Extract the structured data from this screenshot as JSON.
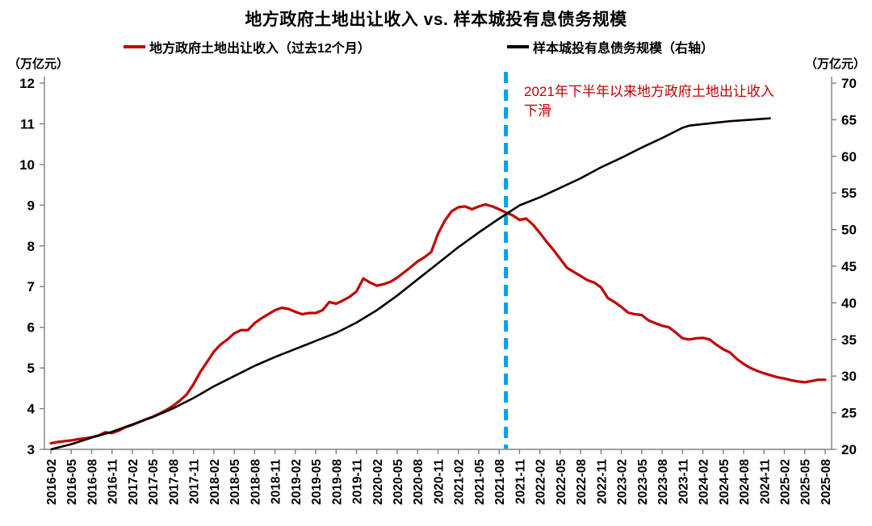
{
  "page": {
    "background": "#FFFFFF"
  },
  "chart_data": {
    "type": "line",
    "title": "地方政府土地出让收入 vs. 样本城投有息债务规模",
    "legend_position": "top",
    "grid": false,
    "x_range": [
      "2016-02",
      "2025-08"
    ],
    "left_axis": {
      "label": "（万亿元）",
      "min": 3,
      "max": 12,
      "ticks": [
        3,
        4,
        5,
        6,
        7,
        8,
        9,
        10,
        11,
        12
      ]
    },
    "right_axis": {
      "label": "（万亿元）",
      "min": 20,
      "max": 70,
      "ticks": [
        20,
        25,
        30,
        35,
        40,
        45,
        50,
        55,
        60,
        65,
        70
      ]
    },
    "x_tick_labels": [
      "2016-02",
      "2016-05",
      "2016-08",
      "2016-11",
      "2017-02",
      "2017-05",
      "2017-08",
      "2017-11",
      "2018-02",
      "2018-05",
      "2018-08",
      "2018-11",
      "2019-02",
      "2019-05",
      "2019-08",
      "2019-11",
      "2020-02",
      "2020-05",
      "2020-08",
      "2020-11",
      "2021-02",
      "2021-05",
      "2021-08",
      "2021-11",
      "2022-02",
      "2022-05",
      "2022-08",
      "2022-11",
      "2023-02",
      "2023-05",
      "2023-08",
      "2023-11",
      "2024-02",
      "2024-05",
      "2024-08",
      "2024-11",
      "2025-02",
      "2025-05",
      "2025-08"
    ],
    "vline": {
      "x": "2021-09",
      "color": "#00A0E9",
      "style": "dashed"
    },
    "annotation": {
      "text": "2021年下半年以来地方政府土地出让收入下滑",
      "lines": [
        "2021年下半年以来地方政府土地出让收入",
        "下滑"
      ],
      "color": "#C00000"
    },
    "series": [
      {
        "name": "地方政府土地出让收入（过去12个月）",
        "axis": "left",
        "color": "#C00000",
        "points": [
          [
            "2016-02",
            3.15
          ],
          [
            "2016-03",
            3.18
          ],
          [
            "2016-04",
            3.2
          ],
          [
            "2016-05",
            3.22
          ],
          [
            "2016-06",
            3.25
          ],
          [
            "2016-07",
            3.27
          ],
          [
            "2016-08",
            3.3
          ],
          [
            "2016-09",
            3.34
          ],
          [
            "2016-10",
            3.42
          ],
          [
            "2016-11",
            3.4
          ],
          [
            "2016-12",
            3.46
          ],
          [
            "2017-01",
            3.55
          ],
          [
            "2017-02",
            3.6
          ],
          [
            "2017-03",
            3.67
          ],
          [
            "2017-04",
            3.74
          ],
          [
            "2017-05",
            3.8
          ],
          [
            "2017-06",
            3.88
          ],
          [
            "2017-07",
            3.97
          ],
          [
            "2017-08",
            4.07
          ],
          [
            "2017-09",
            4.2
          ],
          [
            "2017-10",
            4.35
          ],
          [
            "2017-11",
            4.6
          ],
          [
            "2017-12",
            4.9
          ],
          [
            "2018-01",
            5.15
          ],
          [
            "2018-02",
            5.4
          ],
          [
            "2018-03",
            5.58
          ],
          [
            "2018-04",
            5.7
          ],
          [
            "2018-05",
            5.85
          ],
          [
            "2018-06",
            5.93
          ],
          [
            "2018-07",
            5.93
          ],
          [
            "2018-08",
            6.1
          ],
          [
            "2018-09",
            6.22
          ],
          [
            "2018-10",
            6.32
          ],
          [
            "2018-11",
            6.42
          ],
          [
            "2018-12",
            6.48
          ],
          [
            "2019-01",
            6.45
          ],
          [
            "2019-02",
            6.38
          ],
          [
            "2019-03",
            6.32
          ],
          [
            "2019-04",
            6.35
          ],
          [
            "2019-05",
            6.35
          ],
          [
            "2019-06",
            6.42
          ],
          [
            "2019-07",
            6.62
          ],
          [
            "2019-08",
            6.58
          ],
          [
            "2019-09",
            6.66
          ],
          [
            "2019-10",
            6.75
          ],
          [
            "2019-11",
            6.88
          ],
          [
            "2019-12",
            7.2
          ],
          [
            "2020-01",
            7.1
          ],
          [
            "2020-02",
            7.02
          ],
          [
            "2020-03",
            7.06
          ],
          [
            "2020-04",
            7.12
          ],
          [
            "2020-05",
            7.22
          ],
          [
            "2020-06",
            7.35
          ],
          [
            "2020-07",
            7.48
          ],
          [
            "2020-08",
            7.62
          ],
          [
            "2020-09",
            7.72
          ],
          [
            "2020-10",
            7.85
          ],
          [
            "2020-11",
            8.3
          ],
          [
            "2020-12",
            8.62
          ],
          [
            "2021-01",
            8.85
          ],
          [
            "2021-02",
            8.95
          ],
          [
            "2021-03",
            8.97
          ],
          [
            "2021-04",
            8.9
          ],
          [
            "2021-05",
            8.97
          ],
          [
            "2021-06",
            9.02
          ],
          [
            "2021-07",
            8.97
          ],
          [
            "2021-08",
            8.9
          ],
          [
            "2021-09",
            8.82
          ],
          [
            "2021-10",
            8.75
          ],
          [
            "2021-11",
            8.64
          ],
          [
            "2021-12",
            8.67
          ],
          [
            "2022-01",
            8.52
          ],
          [
            "2022-02",
            8.32
          ],
          [
            "2022-03",
            8.1
          ],
          [
            "2022-04",
            7.9
          ],
          [
            "2022-05",
            7.68
          ],
          [
            "2022-06",
            7.46
          ],
          [
            "2022-07",
            7.36
          ],
          [
            "2022-08",
            7.26
          ],
          [
            "2022-09",
            7.16
          ],
          [
            "2022-10",
            7.1
          ],
          [
            "2022-11",
            6.98
          ],
          [
            "2022-12",
            6.72
          ],
          [
            "2023-01",
            6.62
          ],
          [
            "2023-02",
            6.5
          ],
          [
            "2023-03",
            6.36
          ],
          [
            "2023-04",
            6.32
          ],
          [
            "2023-05",
            6.3
          ],
          [
            "2023-06",
            6.17
          ],
          [
            "2023-07",
            6.1
          ],
          [
            "2023-08",
            6.04
          ],
          [
            "2023-09",
            6.0
          ],
          [
            "2023-10",
            5.87
          ],
          [
            "2023-11",
            5.73
          ],
          [
            "2023-12",
            5.7
          ],
          [
            "2024-01",
            5.73
          ],
          [
            "2024-02",
            5.74
          ],
          [
            "2024-03",
            5.7
          ],
          [
            "2024-04",
            5.57
          ],
          [
            "2024-05",
            5.46
          ],
          [
            "2024-06",
            5.38
          ],
          [
            "2024-07",
            5.22
          ],
          [
            "2024-08",
            5.1
          ],
          [
            "2024-09",
            5.0
          ],
          [
            "2024-10",
            4.93
          ],
          [
            "2024-11",
            4.87
          ],
          [
            "2024-12",
            4.82
          ],
          [
            "2025-01",
            4.77
          ],
          [
            "2025-02",
            4.74
          ],
          [
            "2025-03",
            4.7
          ],
          [
            "2025-04",
            4.67
          ],
          [
            "2025-05",
            4.65
          ],
          [
            "2025-06",
            4.68
          ],
          [
            "2025-07",
            4.71
          ],
          [
            "2025-08",
            4.71
          ]
        ]
      },
      {
        "name": "样本城投有息债务规模（右轴）",
        "axis": "right",
        "color": "#000000",
        "points": [
          [
            "2016-02",
            20.0
          ],
          [
            "2016-05",
            20.7
          ],
          [
            "2016-08",
            21.6
          ],
          [
            "2016-11",
            22.4
          ],
          [
            "2017-02",
            23.4
          ],
          [
            "2017-05",
            24.4
          ],
          [
            "2017-08",
            25.6
          ],
          [
            "2017-11",
            27.0
          ],
          [
            "2018-02",
            28.6
          ],
          [
            "2018-05",
            30.0
          ],
          [
            "2018-08",
            31.4
          ],
          [
            "2018-11",
            32.6
          ],
          [
            "2019-02",
            33.7
          ],
          [
            "2019-05",
            34.8
          ],
          [
            "2019-08",
            35.9
          ],
          [
            "2019-11",
            37.3
          ],
          [
            "2020-02",
            39.0
          ],
          [
            "2020-05",
            41.0
          ],
          [
            "2020-08",
            43.2
          ],
          [
            "2020-11",
            45.4
          ],
          [
            "2021-02",
            47.6
          ],
          [
            "2021-05",
            49.6
          ],
          [
            "2021-08",
            51.5
          ],
          [
            "2021-11",
            53.3
          ],
          [
            "2022-02",
            54.4
          ],
          [
            "2022-05",
            55.7
          ],
          [
            "2022-08",
            57.0
          ],
          [
            "2022-11",
            58.5
          ],
          [
            "2023-02",
            59.8
          ],
          [
            "2023-05",
            61.2
          ],
          [
            "2023-08",
            62.5
          ],
          [
            "2023-11",
            63.9
          ],
          [
            "2023-12",
            64.2
          ],
          [
            "2024-03",
            64.5
          ],
          [
            "2024-06",
            64.8
          ],
          [
            "2024-09",
            65.0
          ],
          [
            "2024-12",
            65.2
          ]
        ]
      }
    ]
  }
}
